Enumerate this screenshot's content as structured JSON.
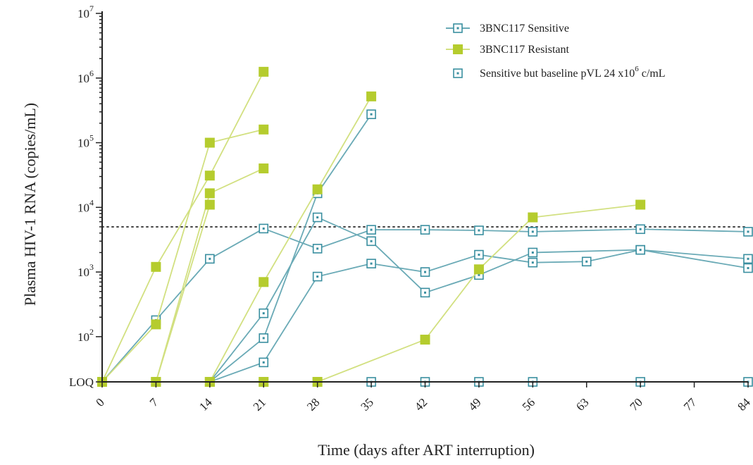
{
  "chart_data": {
    "type": "line",
    "y_scale": "log",
    "xlabel": "Time (days after ART interruption)",
    "ylabel": "Plasma HIV-1 RNA (copies/mL)",
    "x_ticks": [
      0,
      7,
      14,
      21,
      28,
      35,
      42,
      49,
      56,
      63,
      70,
      77,
      84
    ],
    "xlim": [
      0,
      84
    ],
    "ylim": [
      20,
      10000000
    ],
    "y_ticks": [
      {
        "value": 20,
        "label": "LOQ"
      },
      {
        "value": 100,
        "base": "10",
        "exp": "2"
      },
      {
        "value": 1000,
        "base": "10",
        "exp": "3"
      },
      {
        "value": 10000,
        "base": "10",
        "exp": "4"
      },
      {
        "value": 100000,
        "base": "10",
        "exp": "5"
      },
      {
        "value": 1000000,
        "base": "10",
        "exp": "6"
      },
      {
        "value": 10000000,
        "base": "10",
        "exp": "7"
      }
    ],
    "reference_lines": [
      {
        "y": 5000,
        "style": "dotted",
        "color": "#444444"
      },
      {
        "y": 20,
        "style": "dotted",
        "color": "#444444"
      }
    ],
    "legend": {
      "placement": "top-right",
      "entries": [
        {
          "label": "3BNC117 Sensitive",
          "marker": "open-square",
          "color": "#3a8fa0"
        },
        {
          "label": "3BNC117 Resistant",
          "marker": "filled-square",
          "color": "#b5cc2e"
        },
        {
          "label_main": "Sensitive but baseline pVL 24 x10",
          "label_sup": "6",
          "label_tail": " c/mL",
          "marker": "dotted-square",
          "color": "#3a8fa0"
        }
      ]
    },
    "colors": {
      "sensitive": "#3a8fa0",
      "sensitive_line": "#6aaab6",
      "resistant": "#b5cc2e",
      "resistant_line": "#d2e080"
    },
    "series": [
      {
        "group": "resistant",
        "points": [
          [
            0,
            20
          ],
          [
            7,
            1200
          ],
          [
            14,
            31000
          ],
          [
            21,
            1250000
          ]
        ]
      },
      {
        "group": "resistant",
        "points": [
          [
            0,
            20
          ],
          [
            7,
            155
          ],
          [
            14,
            100000
          ],
          [
            21,
            160000
          ]
        ]
      },
      {
        "group": "resistant",
        "points": [
          [
            0,
            20
          ],
          [
            7,
            20
          ],
          [
            14,
            16500
          ],
          [
            21,
            40000
          ]
        ]
      },
      {
        "group": "resistant",
        "points": [
          [
            0,
            20
          ],
          [
            7,
            20
          ],
          [
            14,
            11000
          ]
        ]
      },
      {
        "group": "resistant",
        "points": [
          [
            0,
            20
          ],
          [
            7,
            20
          ],
          [
            14,
            20
          ],
          [
            21,
            700
          ],
          [
            28,
            19000
          ],
          [
            35,
            520000
          ]
        ]
      },
      {
        "group": "resistant",
        "points": [
          [
            0,
            20
          ],
          [
            7,
            20
          ],
          [
            14,
            20
          ],
          [
            21,
            20
          ],
          [
            28,
            20
          ],
          [
            42,
            90
          ],
          [
            49,
            1100
          ],
          [
            56,
            7000
          ],
          [
            70,
            11000
          ]
        ]
      },
      {
        "group": "sensitive",
        "points": [
          [
            0,
            20
          ],
          [
            7,
            180
          ],
          [
            14,
            1600
          ],
          [
            21,
            4700
          ],
          [
            28,
            2300
          ],
          [
            35,
            4500
          ],
          [
            42,
            4500
          ],
          [
            49,
            4400
          ],
          [
            56,
            4200
          ],
          [
            70,
            4600
          ],
          [
            84,
            4200
          ]
        ]
      },
      {
        "group": "sensitive",
        "points": [
          [
            0,
            20
          ],
          [
            7,
            20
          ],
          [
            14,
            20
          ],
          [
            21,
            40
          ],
          [
            28,
            850
          ],
          [
            35,
            1350
          ],
          [
            42,
            1000
          ],
          [
            49,
            1850
          ],
          [
            56,
            1400
          ],
          [
            63,
            1450
          ],
          [
            70,
            2200
          ],
          [
            84,
            1600
          ]
        ]
      },
      {
        "group": "sensitive",
        "points": [
          [
            0,
            20
          ],
          [
            7,
            20
          ],
          [
            14,
            20
          ],
          [
            21,
            230
          ],
          [
            28,
            7000
          ],
          [
            35,
            3000
          ],
          [
            42,
            480
          ],
          [
            49,
            900
          ],
          [
            56,
            2000
          ],
          [
            70,
            2200
          ],
          [
            84,
            1150
          ]
        ]
      },
      {
        "group": "sensitive",
        "points": [
          [
            0,
            20
          ],
          [
            7,
            20
          ],
          [
            14,
            20
          ],
          [
            21,
            20
          ],
          [
            28,
            20
          ],
          [
            35,
            20
          ],
          [
            42,
            20
          ],
          [
            49,
            20
          ],
          [
            56,
            20
          ],
          [
            70,
            20
          ],
          [
            84,
            20
          ]
        ]
      },
      {
        "group": "sensitive_baseline",
        "points": [
          [
            0,
            20
          ],
          [
            7,
            20
          ],
          [
            14,
            20
          ],
          [
            21,
            95
          ],
          [
            28,
            16500
          ],
          [
            35,
            275000
          ]
        ]
      }
    ]
  }
}
